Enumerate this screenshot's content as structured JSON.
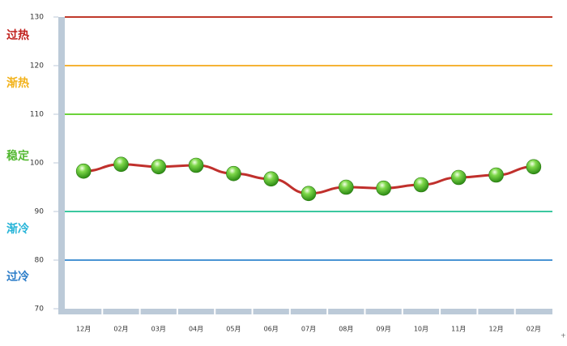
{
  "chart_data": {
    "type": "line",
    "categories": [
      "12月",
      "02月",
      "03月",
      "04月",
      "05月",
      "06月",
      "07月",
      "08月",
      "09月",
      "10月",
      "11月",
      "12月",
      "02月"
    ],
    "values": [
      98.3,
      99.7,
      99.2,
      99.5,
      97.8,
      96.7,
      93.7,
      95,
      94.8,
      95.5,
      97,
      97.5,
      99.2
    ],
    "color": "#c0302c",
    "ylim": [
      70,
      130
    ],
    "yticks": [
      70,
      80,
      90,
      100,
      110,
      120,
      130
    ],
    "reference_lines": [
      {
        "value": 130,
        "color": "#c0392b"
      },
      {
        "value": 120,
        "color": "#f5b335"
      },
      {
        "value": 110,
        "color": "#6cd23a"
      },
      {
        "value": 90,
        "color": "#3cc8a0"
      },
      {
        "value": 80,
        "color": "#4a94d4"
      }
    ],
    "zones": [
      {
        "label": "过热",
        "color": "#c0201c"
      },
      {
        "label": "渐热",
        "color": "#f2b21a"
      },
      {
        "label": "稳定",
        "color": "#52b830"
      },
      {
        "label": "渐冷",
        "color": "#26b4d8"
      },
      {
        "label": "过冷",
        "color": "#2a7cc8"
      }
    ]
  }
}
